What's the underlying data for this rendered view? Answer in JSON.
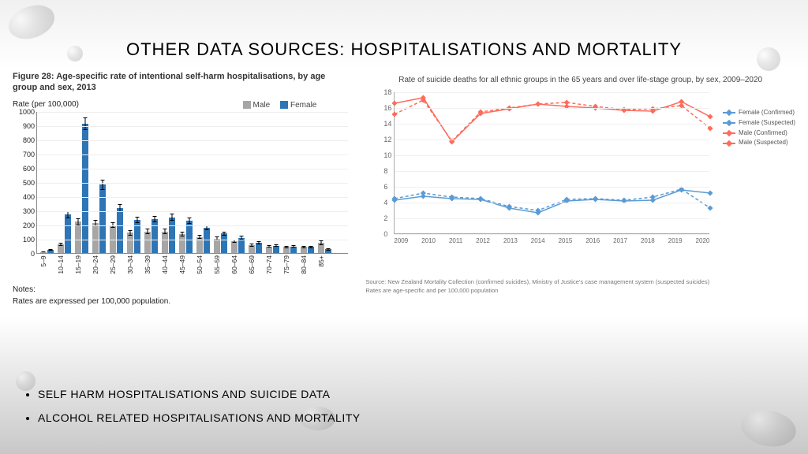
{
  "slide_title": "OTHER DATA SOURCES: HOSPITALISATIONS AND MORTALITY",
  "bar_chart": {
    "type": "bar",
    "figure_caption": "Figure 28: Age-specific rate of intentional self-harm hospitalisations, by age group and sex, 2013",
    "y_axis_label": "Rate (per 100,000)",
    "ylim": [
      0,
      1000
    ],
    "ytick_step": 100,
    "categories": [
      "5–9",
      "10–14",
      "15–19",
      "20–24",
      "25–29",
      "30–34",
      "35–39",
      "40–44",
      "45–49",
      "50–54",
      "55–59",
      "60–64",
      "65–69",
      "70–74",
      "75–79",
      "80–84",
      "85+"
    ],
    "series": [
      {
        "name": "Male",
        "color": "#a6a6a6",
        "values": [
          5,
          60,
          220,
          210,
          195,
          140,
          150,
          150,
          130,
          110,
          100,
          80,
          55,
          45,
          40,
          40,
          70
        ],
        "err": [
          3,
          10,
          25,
          22,
          20,
          18,
          18,
          18,
          16,
          14,
          13,
          12,
          10,
          9,
          9,
          9,
          14
        ]
      },
      {
        "name": "Female",
        "color": "#2e75b6",
        "values": [
          20,
          270,
          910,
          480,
          315,
          230,
          235,
          250,
          225,
          175,
          135,
          105,
          70,
          50,
          45,
          40,
          25
        ],
        "err": [
          5,
          25,
          45,
          35,
          28,
          22,
          22,
          23,
          21,
          18,
          15,
          13,
          11,
          10,
          10,
          10,
          8
        ]
      }
    ],
    "legend_label_male": "Male",
    "legend_label_female": "Female",
    "notes_heading": "Notes:",
    "notes_line": "Rates are expressed per 100,000 population."
  },
  "line_chart": {
    "type": "line",
    "title": "Rate of suicide deaths for all ethnic groups in the 65 years and over life-stage group, by sex, 2009–2020",
    "ylim": [
      0,
      18
    ],
    "yticks": [
      0,
      2,
      4,
      6,
      8,
      10,
      12,
      14,
      16,
      18
    ],
    "x_labels": [
      "2009",
      "2010",
      "2011",
      "2012",
      "2013",
      "2014",
      "2015",
      "2016",
      "2017",
      "2018",
      "2019",
      "2020"
    ],
    "series": [
      {
        "name": "Female (Confirmed)",
        "color": "#5b9bd5",
        "dash": false,
        "marker": "diamond",
        "values": [
          4.3,
          4.8,
          4.5,
          4.4,
          3.3,
          2.7,
          4.2,
          4.4,
          4.2,
          4.3,
          5.6,
          5.2
        ]
      },
      {
        "name": "Female (Suspected)",
        "color": "#5b9bd5",
        "dash": true,
        "marker": "diamond",
        "values": [
          4.5,
          5.2,
          4.7,
          4.5,
          3.5,
          3.0,
          4.4,
          4.5,
          4.3,
          4.7,
          5.7,
          3.3
        ]
      },
      {
        "name": "Male (Confirmed)",
        "color": "#ff6b5b",
        "dash": false,
        "marker": "diamond",
        "values": [
          16.6,
          17.3,
          11.7,
          15.3,
          15.9,
          16.5,
          16.2,
          16.0,
          15.7,
          15.6,
          16.8,
          14.9
        ]
      },
      {
        "name": "Male (Suspected)",
        "color": "#ff6b5b",
        "dash": true,
        "marker": "diamond",
        "values": [
          15.2,
          17.0,
          11.8,
          15.5,
          16.0,
          16.5,
          16.7,
          16.2,
          15.8,
          15.9,
          16.3,
          13.4
        ]
      }
    ],
    "grid_color": "#f0f0f0",
    "source_line1": "Source: New Zealand Mortality Collection (confirmed suicides), Ministry of Justice's case management system (suspected suicides)",
    "source_line2": "Rates are age-specific and per 100,000 population"
  },
  "bullets": [
    "SELF HARM HOSPITALISATIONS AND SUICIDE DATA",
    "ALCOHOL RELATED HOSPITALISATIONS AND MORTALITY"
  ]
}
